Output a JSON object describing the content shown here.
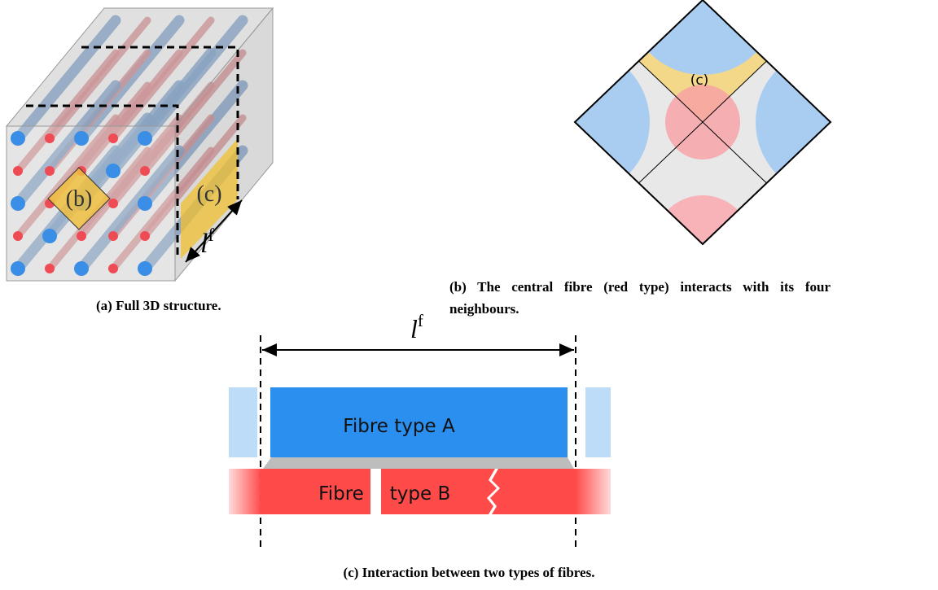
{
  "figure_a": {
    "label_b": "(b)",
    "label_c": "(c)",
    "length_label": "l",
    "length_sup": "f",
    "caption": "(a) Full 3D structure."
  },
  "figure_b": {
    "label_c": "(c)",
    "caption": "(b) The central fibre (red type) interacts with its four neighbours."
  },
  "figure_c": {
    "length_label": "l",
    "length_sup": "f",
    "fibre_a": "Fibre type A",
    "fibre_b_left": "Fibre",
    "fibre_b_right": "type B",
    "caption": "(c) Interaction between two types of fibres."
  }
}
